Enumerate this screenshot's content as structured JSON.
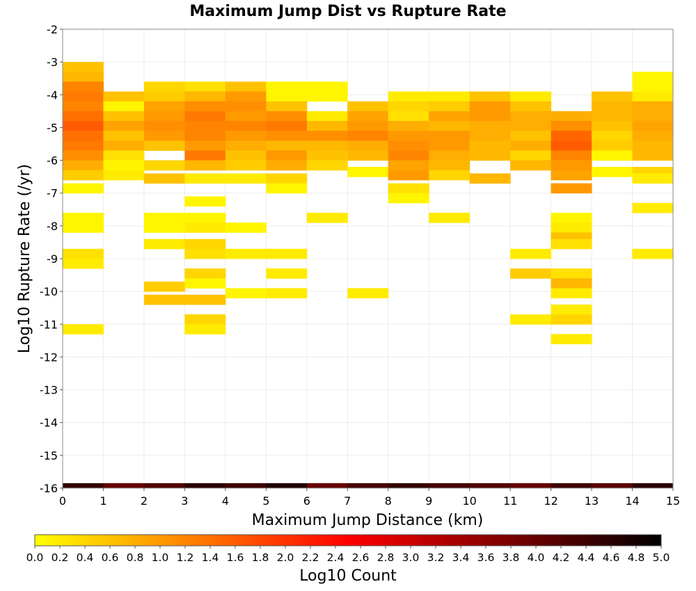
{
  "chart_data": {
    "type": "heatmap",
    "title": "Maximum Jump Dist vs Rupture Rate",
    "xlabel": "Maximum Jump Distance (km)",
    "ylabel": "Log10 Rupture Rate (/yr)",
    "xlim": [
      0,
      15
    ],
    "ylim": [
      -16,
      -2
    ],
    "x_ticks": [
      "0",
      "1",
      "2",
      "3",
      "4",
      "5",
      "6",
      "7",
      "8",
      "9",
      "10",
      "11",
      "12",
      "13",
      "14",
      "15"
    ],
    "y_ticks": [
      "-2",
      "-3",
      "-4",
      "-5",
      "-6",
      "-7",
      "-8",
      "-9",
      "-10",
      "-11",
      "-12",
      "-13",
      "-14",
      "-15",
      "-16"
    ],
    "x_bin_width": 1,
    "y_bin_height": 0.3,
    "grid": true,
    "colorbar": {
      "label": "Log10 Count",
      "range": [
        0,
        5
      ],
      "ticks": [
        "0.0",
        "0.2",
        "0.4",
        "0.6",
        "0.8",
        "1.0",
        "1.2",
        "1.4",
        "1.6",
        "1.8",
        "2.0",
        "2.2",
        "2.4",
        "2.6",
        "2.8",
        "3.0",
        "3.2",
        "3.4",
        "3.6",
        "3.8",
        "4.0",
        "4.2",
        "4.4",
        "4.6",
        "4.8",
        "5.0"
      ],
      "colors": [
        "#ffff00",
        "#ff7f00",
        "#ff0000",
        "#7f0000",
        "#000000"
      ]
    },
    "cells": [
      [
        0,
        -3.15,
        0.6
      ],
      [
        0,
        -3.45,
        0.7
      ],
      [
        0,
        -3.75,
        1.2
      ],
      [
        0,
        -4.05,
        1.3
      ],
      [
        0,
        -4.35,
        1.2
      ],
      [
        0,
        -4.65,
        1.4
      ],
      [
        0,
        -4.95,
        1.6
      ],
      [
        0,
        -5.25,
        1.4
      ],
      [
        0,
        -5.55,
        1.3
      ],
      [
        0,
        -5.85,
        1.1
      ],
      [
        0,
        -6.15,
        0.8
      ],
      [
        0,
        -6.45,
        0.5
      ],
      [
        0,
        -6.85,
        0.1
      ],
      [
        0,
        -7.75,
        0.1
      ],
      [
        0,
        -8.05,
        0.1
      ],
      [
        0,
        -8.85,
        0.3
      ],
      [
        0,
        -9.15,
        0.2
      ],
      [
        0,
        -11.15,
        0.2
      ],
      [
        0,
        -16,
        4.5
      ],
      [
        1,
        -4.05,
        0.6
      ],
      [
        1,
        -4.35,
        0.1
      ],
      [
        1,
        -4.65,
        0.6
      ],
      [
        1,
        -4.95,
        0.9
      ],
      [
        1,
        -5.25,
        0.6
      ],
      [
        1,
        -5.55,
        0.8
      ],
      [
        1,
        -5.85,
        0.3
      ],
      [
        1,
        -6.15,
        0.1
      ],
      [
        1,
        -6.45,
        0.2
      ],
      [
        1,
        -16,
        4.0
      ],
      [
        2,
        -3.75,
        0.4
      ],
      [
        2,
        -4.05,
        0.5
      ],
      [
        2,
        -4.35,
        0.9
      ],
      [
        2,
        -4.65,
        1.0
      ],
      [
        2,
        -4.95,
        1.1
      ],
      [
        2,
        -5.25,
        1.0
      ],
      [
        2,
        -5.55,
        0.6
      ],
      [
        2,
        -6.15,
        0.4
      ],
      [
        2,
        -6.55,
        0.6
      ],
      [
        2,
        -7.75,
        0.1
      ],
      [
        2,
        -8.05,
        0.1
      ],
      [
        2,
        -8.55,
        0.2
      ],
      [
        2,
        -9.85,
        0.5
      ],
      [
        2,
        -10.25,
        0.6
      ],
      [
        2,
        -16,
        4.2
      ],
      [
        3,
        -3.75,
        0.3
      ],
      [
        3,
        -4.05,
        0.7
      ],
      [
        3,
        -4.35,
        1.1
      ],
      [
        3,
        -4.65,
        1.3
      ],
      [
        3,
        -4.95,
        1.2
      ],
      [
        3,
        -5.25,
        1.2
      ],
      [
        3,
        -5.55,
        1.0
      ],
      [
        3,
        -5.85,
        1.3
      ],
      [
        3,
        -6.15,
        0.7
      ],
      [
        3,
        -6.55,
        0.2
      ],
      [
        3,
        -7.25,
        0.1
      ],
      [
        3,
        -7.75,
        0.1
      ],
      [
        3,
        -8.05,
        0.2
      ],
      [
        3,
        -8.55,
        0.4
      ],
      [
        3,
        -8.85,
        0.3
      ],
      [
        3,
        -9.45,
        0.4
      ],
      [
        3,
        -9.75,
        0.1
      ],
      [
        3,
        -10.25,
        0.6
      ],
      [
        3,
        -10.85,
        0.4
      ],
      [
        3,
        -11.15,
        0.2
      ],
      [
        3,
        -16,
        4.6
      ],
      [
        4,
        -3.75,
        0.6
      ],
      [
        4,
        -4.05,
        1.0
      ],
      [
        4,
        -4.35,
        1.1
      ],
      [
        4,
        -4.65,
        1.0
      ],
      [
        4,
        -4.95,
        1.2
      ],
      [
        4,
        -5.25,
        1.0
      ],
      [
        4,
        -5.55,
        0.8
      ],
      [
        4,
        -5.85,
        0.6
      ],
      [
        4,
        -6.15,
        0.5
      ],
      [
        4,
        -6.55,
        0.2
      ],
      [
        4,
        -8.05,
        0.1
      ],
      [
        4,
        -8.85,
        0.2
      ],
      [
        4,
        -10.05,
        0.1
      ],
      [
        4,
        -16,
        4.4
      ],
      [
        5,
        -3.75,
        0.1
      ],
      [
        5,
        -4.05,
        0.1
      ],
      [
        5,
        -4.35,
        0.6
      ],
      [
        5,
        -4.65,
        1.1
      ],
      [
        5,
        -4.95,
        1.3
      ],
      [
        5,
        -5.25,
        1.1
      ],
      [
        5,
        -5.55,
        0.7
      ],
      [
        5,
        -5.85,
        1.0
      ],
      [
        5,
        -6.15,
        0.8
      ],
      [
        5,
        -6.55,
        0.4
      ],
      [
        5,
        -6.85,
        0.1
      ],
      [
        5,
        -8.85,
        0.2
      ],
      [
        5,
        -9.45,
        0.2
      ],
      [
        5,
        -10.05,
        0.2
      ],
      [
        5,
        -16,
        4.7
      ],
      [
        6,
        -3.75,
        0.1
      ],
      [
        6,
        -4.05,
        0.1
      ],
      [
        6,
        -4.65,
        0.2
      ],
      [
        6,
        -4.95,
        0.7
      ],
      [
        6,
        -5.25,
        1.1
      ],
      [
        6,
        -5.55,
        0.7
      ],
      [
        6,
        -5.85,
        0.6
      ],
      [
        6,
        -6.15,
        0.4
      ],
      [
        6,
        -7.75,
        0.2
      ],
      [
        6,
        -16,
        4.0
      ],
      [
        7,
        -4.35,
        0.6
      ],
      [
        7,
        -4.65,
        0.9
      ],
      [
        7,
        -4.95,
        1.0
      ],
      [
        7,
        -5.25,
        1.2
      ],
      [
        7,
        -5.55,
        0.8
      ],
      [
        7,
        -5.85,
        0.7
      ],
      [
        7,
        -6.35,
        0.1
      ],
      [
        7,
        -10.05,
        0.2
      ],
      [
        7,
        -16,
        4.3
      ],
      [
        8,
        -4.05,
        0.2
      ],
      [
        8,
        -4.35,
        0.4
      ],
      [
        8,
        -4.65,
        0.3
      ],
      [
        8,
        -4.95,
        0.8
      ],
      [
        8,
        -5.25,
        1.0
      ],
      [
        8,
        -5.55,
        1.1
      ],
      [
        8,
        -5.85,
        1.2
      ],
      [
        8,
        -6.15,
        0.9
      ],
      [
        8,
        -6.45,
        1.0
      ],
      [
        8,
        -6.85,
        0.3
      ],
      [
        8,
        -7.15,
        0.1
      ],
      [
        8,
        -16,
        4.5
      ],
      [
        9,
        -4.05,
        0.2
      ],
      [
        9,
        -4.35,
        0.5
      ],
      [
        9,
        -4.65,
        0.9
      ],
      [
        9,
        -4.95,
        0.7
      ],
      [
        9,
        -5.25,
        1.0
      ],
      [
        9,
        -5.55,
        1.0
      ],
      [
        9,
        -5.85,
        0.8
      ],
      [
        9,
        -6.15,
        0.7
      ],
      [
        9,
        -6.45,
        0.4
      ],
      [
        9,
        -7.75,
        0.2
      ],
      [
        9,
        -16,
        4.3
      ],
      [
        10,
        -4.05,
        0.6
      ],
      [
        10,
        -4.35,
        1.0
      ],
      [
        10,
        -4.65,
        1.0
      ],
      [
        10,
        -4.95,
        0.8
      ],
      [
        10,
        -5.25,
        0.8
      ],
      [
        10,
        -5.55,
        0.7
      ],
      [
        10,
        -5.85,
        0.7
      ],
      [
        10,
        -6.55,
        0.7
      ],
      [
        10,
        -16,
        4.2
      ],
      [
        11,
        -4.05,
        0.2
      ],
      [
        11,
        -4.35,
        0.6
      ],
      [
        11,
        -4.65,
        0.8
      ],
      [
        11,
        -4.95,
        0.8
      ],
      [
        11,
        -5.25,
        0.6
      ],
      [
        11,
        -5.55,
        0.8
      ],
      [
        11,
        -5.85,
        0.4
      ],
      [
        11,
        -6.15,
        0.7
      ],
      [
        11,
        -8.85,
        0.2
      ],
      [
        11,
        -9.45,
        0.5
      ],
      [
        11,
        -10.85,
        0.2
      ],
      [
        11,
        -16,
        4.0
      ],
      [
        12,
        -4.65,
        0.8
      ],
      [
        12,
        -4.95,
        1.1
      ],
      [
        12,
        -5.25,
        1.5
      ],
      [
        12,
        -5.55,
        1.6
      ],
      [
        12,
        -5.85,
        1.2
      ],
      [
        12,
        -6.15,
        1.0
      ],
      [
        12,
        -6.45,
        0.9
      ],
      [
        12,
        -6.85,
        1.0
      ],
      [
        12,
        -7.75,
        0.1
      ],
      [
        12,
        -8.05,
        0.2
      ],
      [
        12,
        -8.35,
        0.6
      ],
      [
        12,
        -8.55,
        0.3
      ],
      [
        12,
        -9.45,
        0.3
      ],
      [
        12,
        -9.75,
        0.7
      ],
      [
        12,
        -10.05,
        0.2
      ],
      [
        12,
        -10.55,
        0.2
      ],
      [
        12,
        -10.85,
        0.4
      ],
      [
        12,
        -11.45,
        0.2
      ],
      [
        12,
        -16,
        4.4
      ],
      [
        13,
        -4.05,
        0.6
      ],
      [
        13,
        -4.35,
        0.7
      ],
      [
        13,
        -4.65,
        0.7
      ],
      [
        13,
        -4.95,
        0.6
      ],
      [
        13,
        -5.25,
        0.4
      ],
      [
        13,
        -5.55,
        0.5
      ],
      [
        13,
        -5.85,
        0.1
      ],
      [
        13,
        -6.35,
        0.1
      ],
      [
        13,
        -16,
        4.1
      ],
      [
        14,
        -3.45,
        0.1
      ],
      [
        14,
        -3.75,
        0.1
      ],
      [
        14,
        -4.05,
        0.2
      ],
      [
        14,
        -4.35,
        0.8
      ],
      [
        14,
        -4.65,
        0.8
      ],
      [
        14,
        -4.95,
        0.9
      ],
      [
        14,
        -5.25,
        0.8
      ],
      [
        14,
        -5.55,
        0.7
      ],
      [
        14,
        -5.85,
        0.7
      ],
      [
        14,
        -6.35,
        0.4
      ],
      [
        14,
        -6.55,
        0.2
      ],
      [
        14,
        -7.45,
        0.2
      ],
      [
        14,
        -8.85,
        0.2
      ],
      [
        14,
        -16,
        4.6
      ]
    ]
  }
}
